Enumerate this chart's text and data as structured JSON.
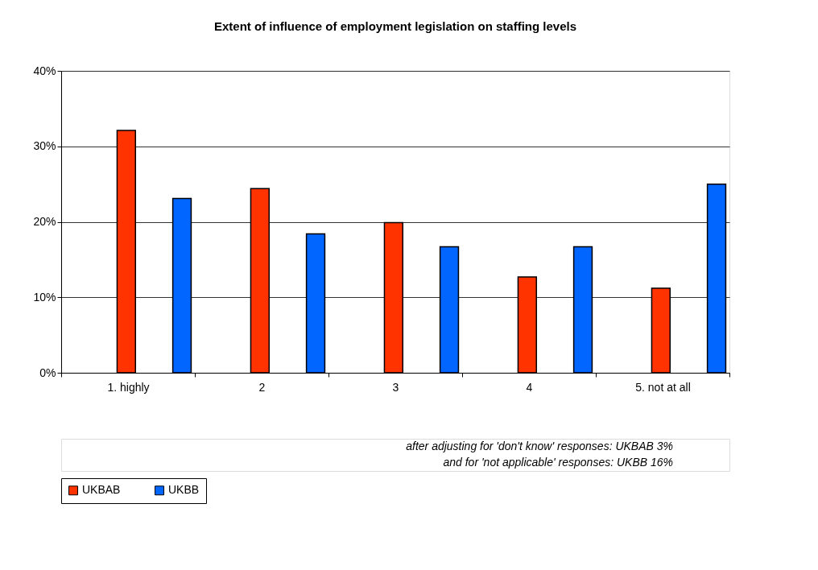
{
  "chart_data": {
    "type": "bar",
    "title": "Extent of influence of employment legislation on staffing levels",
    "categories": [
      "1. highly",
      "2",
      "3",
      "4",
      "5. not at all"
    ],
    "series": [
      {
        "name": "UKBAB",
        "color": "#ff3300",
        "values": [
          32.1,
          24.4,
          19.9,
          12.7,
          11.2
        ]
      },
      {
        "name": "UKBB",
        "color": "#0066ff",
        "values": [
          23.1,
          18.4,
          16.7,
          16.7,
          25.0
        ]
      }
    ],
    "ylim": [
      0,
      40
    ],
    "yticks": [
      {
        "value": 0,
        "label": "0%"
      },
      {
        "value": 10,
        "label": "10%"
      },
      {
        "value": 20,
        "label": "20%"
      },
      {
        "value": 30,
        "label": "30%"
      },
      {
        "value": 40,
        "label": "40%"
      }
    ],
    "grid": "y",
    "legend": "bottom",
    "annotations": [
      "after adjusting for 'don't know' responses: UKBAB 3%",
      "and for 'not applicable' responses: UKBB 16%"
    ]
  }
}
